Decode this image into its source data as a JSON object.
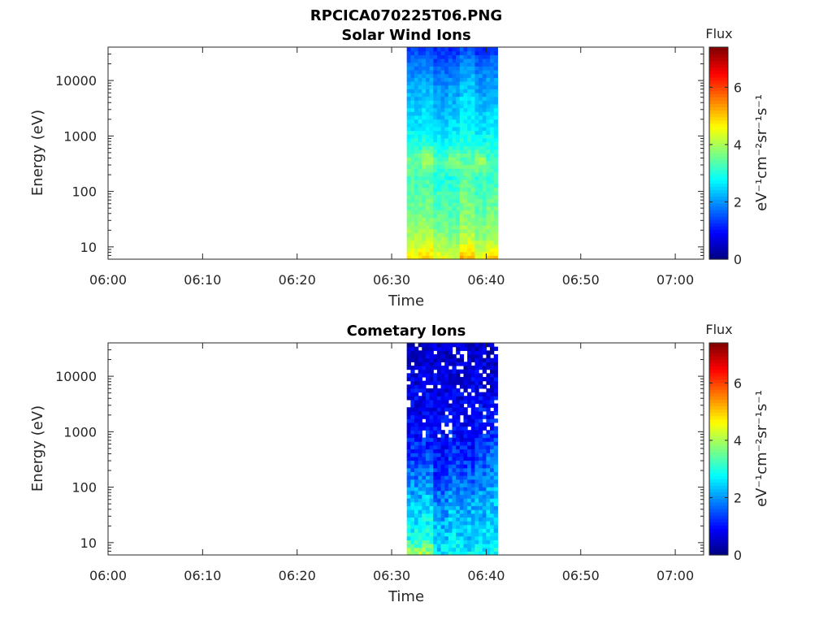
{
  "figure": {
    "title": "RPCICA070225T06.PNG"
  },
  "chart_data": [
    {
      "type": "heatmap",
      "title": "Solar Wind Ions",
      "xlabel": "Time",
      "ylabel": "Energy (eV)",
      "x_ticks": [
        "06:00",
        "06:10",
        "06:20",
        "06:30",
        "06:40",
        "06:50",
        "07:00"
      ],
      "xlim": [
        "06:00",
        "07:03"
      ],
      "y_scale": "log",
      "y_ticks": [
        "10",
        "100",
        "1000",
        "10000"
      ],
      "ylim": [
        6,
        40000
      ],
      "data_time_range": [
        "06:31.6",
        "06:41.2"
      ],
      "colorbar": {
        "label_top": "Flux",
        "units": "eV⁻¹cm⁻²sr⁻¹s⁻¹",
        "ticks": [
          "0",
          "2",
          "4",
          "6"
        ],
        "range": [
          0,
          7.4
        ],
        "colormap": "jet"
      },
      "column_flux_profile_low_to_high_energy": [
        [
          4.8,
          4.1,
          3.8,
          3.6,
          3.4,
          3.3,
          3.6,
          3.0,
          2.7,
          2.5,
          2.3,
          2.1,
          1.8,
          1.4
        ],
        [
          5.0,
          4.2,
          3.9,
          3.6,
          3.5,
          3.3,
          4.1,
          3.1,
          2.8,
          2.6,
          2.4,
          2.2,
          1.9,
          1.3
        ],
        [
          4.5,
          3.9,
          3.6,
          3.4,
          3.2,
          3.0,
          3.4,
          2.8,
          2.5,
          2.3,
          2.1,
          1.9,
          1.6,
          1.2
        ],
        [
          4.3,
          3.8,
          3.5,
          3.3,
          3.2,
          2.9,
          3.9,
          2.9,
          2.6,
          2.4,
          2.2,
          2.0,
          1.7,
          1.2
        ],
        [
          5.2,
          4.3,
          3.9,
          3.7,
          3.6,
          3.4,
          3.5,
          3.1,
          2.8,
          2.6,
          2.5,
          2.3,
          2.0,
          1.5
        ],
        [
          4.6,
          3.9,
          3.6,
          3.4,
          3.3,
          3.1,
          4.0,
          2.9,
          2.6,
          2.4,
          2.2,
          2.0,
          1.7,
          1.2
        ],
        [
          5.0,
          4.1,
          3.8,
          3.6,
          3.4,
          3.2,
          3.3,
          3.0,
          2.7,
          2.5,
          2.3,
          2.1,
          1.8,
          1.3
        ]
      ]
    },
    {
      "type": "heatmap",
      "title": "Cometary Ions",
      "xlabel": "Time",
      "ylabel": "Energy (eV)",
      "x_ticks": [
        "06:00",
        "06:10",
        "06:20",
        "06:30",
        "06:40",
        "06:50",
        "07:00"
      ],
      "xlim": [
        "06:00",
        "07:03"
      ],
      "y_scale": "log",
      "y_ticks": [
        "10",
        "100",
        "1000",
        "10000"
      ],
      "ylim": [
        6,
        40000
      ],
      "data_time_range": [
        "06:31.6",
        "06:41.2"
      ],
      "colorbar": {
        "label_top": "Flux",
        "units": "eV⁻¹cm⁻²sr⁻¹s⁻¹",
        "ticks": [
          "0",
          "2",
          "4",
          "6"
        ],
        "range": [
          0,
          7.4
        ],
        "colormap": "jet"
      },
      "column_flux_profile_low_to_high_energy": [
        [
          3.9,
          2.9,
          2.6,
          2.4,
          2.1,
          1.7,
          1.4,
          1.1,
          0.9,
          0.8,
          0.8,
          0.7,
          0.6,
          0.5
        ],
        [
          3.9,
          3.0,
          2.7,
          2.5,
          2.2,
          1.8,
          1.5,
          1.2,
          1.0,
          0.9,
          0.8,
          0.7,
          0.6,
          0.5
        ],
        [
          2.6,
          2.4,
          2.2,
          1.9,
          1.6,
          1.3,
          1.1,
          1.0,
          0.9,
          0.8,
          0.8,
          0.7,
          0.6,
          0.5
        ],
        [
          2.9,
          2.6,
          2.4,
          2.2,
          1.9,
          1.6,
          1.3,
          1.1,
          1.0,
          0.9,
          0.8,
          0.7,
          0.6,
          0.5
        ],
        [
          2.7,
          2.4,
          2.3,
          2.1,
          1.9,
          1.5,
          1.2,
          1.0,
          0.9,
          0.8,
          0.7,
          0.7,
          0.6,
          0.5
        ],
        [
          2.8,
          2.5,
          2.3,
          2.2,
          2.0,
          1.7,
          1.5,
          1.3,
          1.1,
          1.0,
          0.9,
          0.8,
          0.7,
          0.5
        ],
        [
          2.8,
          2.6,
          2.4,
          2.3,
          2.2,
          2.0,
          1.8,
          1.4,
          1.1,
          0.9,
          0.8,
          0.7,
          0.6,
          0.5
        ]
      ]
    }
  ]
}
